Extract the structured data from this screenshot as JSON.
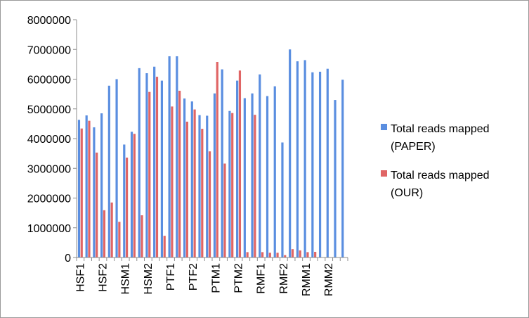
{
  "chart_data": {
    "type": "bar",
    "title": "",
    "xlabel": "",
    "ylabel": "",
    "ylim": [
      0,
      8000000
    ],
    "yticks": [
      0,
      1000000,
      2000000,
      3000000,
      4000000,
      5000000,
      6000000,
      7000000,
      8000000
    ],
    "grid": false,
    "legend_position": "right",
    "category_tick_labels": [
      "HSF1",
      "HSF2",
      "HSM1",
      "HSM2",
      "PTF1",
      "PTF2",
      "PTM1",
      "PTM2",
      "RMF1",
      "RMF2",
      "RMM1",
      "RMM2"
    ],
    "categories": [
      "HSF1",
      "",
      "",
      "HSF2",
      "",
      "",
      "HSM1",
      "",
      "",
      "HSM2",
      "",
      "",
      "PTF1",
      "",
      "",
      "PTF2",
      "",
      "",
      "PTM1",
      "",
      "",
      "PTM2",
      "",
      "",
      "RMF1",
      "",
      "",
      "RMF2",
      "",
      "",
      "RMM1",
      "",
      "",
      "RMM2",
      "",
      ""
    ],
    "series": [
      {
        "name": "Total reads mapped (PAPER)",
        "color": "#5a8ee0",
        "values": [
          4630000,
          4780000,
          4380000,
          4850000,
          5780000,
          6000000,
          3800000,
          4230000,
          6370000,
          6200000,
          6420000,
          5950000,
          6770000,
          6770000,
          5350000,
          5250000,
          4790000,
          4770000,
          5520000,
          6330000,
          4930000,
          5950000,
          5360000,
          5520000,
          6160000,
          5430000,
          5760000,
          3870000,
          7000000,
          6600000,
          6640000,
          6230000,
          6250000,
          6350000,
          5300000,
          5980000
        ]
      },
      {
        "name": "Total reads mapped (OUR)",
        "color": "#e06565",
        "values": [
          4340000,
          4600000,
          3530000,
          1590000,
          1850000,
          1200000,
          3360000,
          4160000,
          1420000,
          5570000,
          6080000,
          730000,
          5080000,
          5610000,
          4570000,
          4980000,
          4330000,
          3570000,
          6580000,
          3160000,
          4860000,
          6290000,
          180000,
          4800000,
          180000,
          160000,
          160000,
          80000,
          280000,
          240000,
          180000,
          190000,
          0,
          0,
          0,
          0
        ]
      }
    ],
    "legend": [
      {
        "line1": "Total reads mapped",
        "line2": "(PAPER)"
      },
      {
        "line1": "Total reads mapped",
        "line2": "(OUR)"
      }
    ]
  }
}
